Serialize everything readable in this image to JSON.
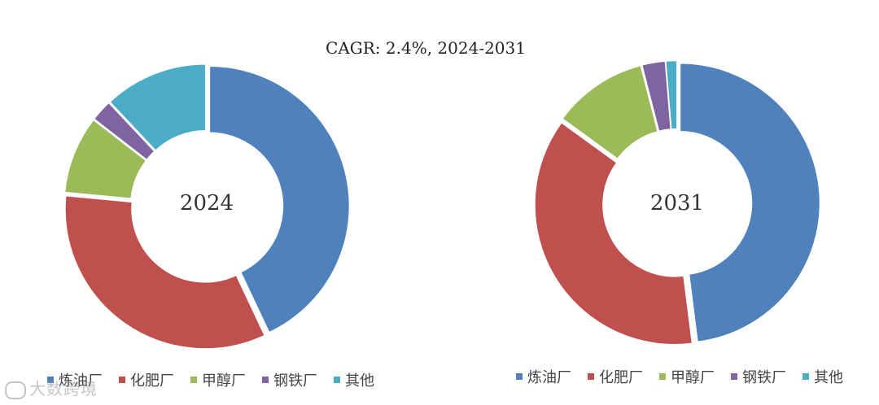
{
  "chart_data": [
    {
      "type": "pie",
      "title": "CAGR:   2.4%, 2024-2031",
      "center_label": "2024",
      "categories": [
        "炼油厂",
        "化肥厂",
        "甲醇厂",
        "钢铁厂",
        "其他"
      ],
      "values": [
        43.0,
        33.5,
        9.0,
        2.5,
        12.0
      ],
      "colors": [
        "#4F81BD",
        "#C0504D",
        "#9BBB59",
        "#8064A2",
        "#4BACC6"
      ],
      "legend": "bottom"
    },
    {
      "type": "pie",
      "center_label": "2031",
      "categories": [
        "炼油厂",
        "化肥厂",
        "甲醇厂",
        "钢铁厂",
        "其他"
      ],
      "values": [
        48.0,
        37.0,
        11.0,
        2.7,
        1.3
      ],
      "colors": [
        "#4F81BD",
        "#C0504D",
        "#9BBB59",
        "#8064A2",
        "#4BACC6"
      ],
      "legend": "bottom"
    }
  ],
  "watermark": "大数跨境"
}
